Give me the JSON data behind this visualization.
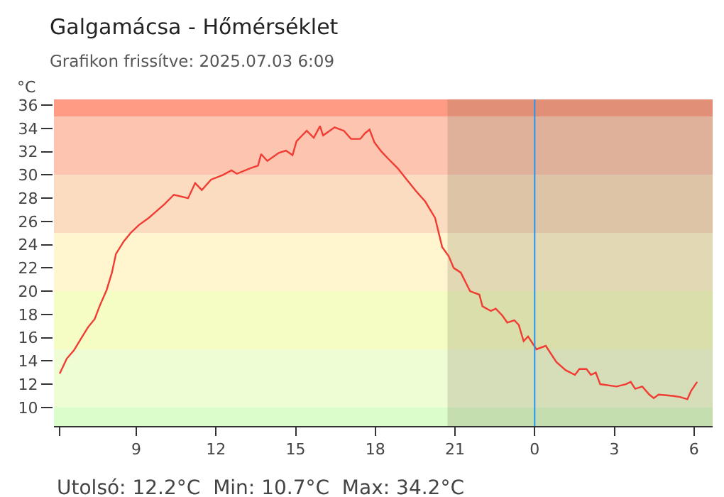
{
  "chart_data": {
    "type": "line",
    "title": "Galgamácsa - Hőmérséklet",
    "subtitle": "Grafikon frissítve: 2025.07.03 6:09",
    "ylabel": "°C",
    "annotations": [
      "Utolsó: 12.2°C  Min: 10.7°C  Max: 34.2°C"
    ],
    "series": [
      {
        "color": "#f03c32",
        "x": [
          "2025-07-02T06:07",
          "2025-07-02T06:23",
          "2025-07-02T06:39",
          "2025-07-02T06:55",
          "2025-07-02T07:11",
          "2025-07-02T07:26",
          "2025-07-02T07:37",
          "2025-07-02T07:53",
          "2025-07-02T08:05",
          "2025-07-02T08:14",
          "2025-07-02T08:32",
          "2025-07-02T08:47",
          "2025-07-02T09:06",
          "2025-07-02T09:28",
          "2025-07-02T09:43",
          "2025-07-02T10:04",
          "2025-07-02T10:25",
          "2025-07-02T10:57",
          "2025-07-02T11:13",
          "2025-07-02T11:28",
          "2025-07-02T11:49",
          "2025-07-02T12:16",
          "2025-07-02T12:35",
          "2025-07-02T12:47",
          "2025-07-02T13:19",
          "2025-07-02T13:35",
          "2025-07-02T13:42",
          "2025-07-02T13:56",
          "2025-07-02T14:22",
          "2025-07-02T14:38",
          "2025-07-02T14:53",
          "2025-07-02T15:02",
          "2025-07-02T15:25",
          "2025-07-02T15:41",
          "2025-07-02T15:55",
          "2025-07-02T16:02",
          "2025-07-02T16:28",
          "2025-07-02T16:49",
          "2025-07-02T17:05",
          "2025-07-02T17:26",
          "2025-07-02T17:37",
          "2025-07-02T17:47",
          "2025-07-02T17:58",
          "2025-07-02T18:14",
          "2025-07-02T18:29",
          "2025-07-02T18:50",
          "2025-07-02T19:11",
          "2025-07-02T19:32",
          "2025-07-02T19:53",
          "2025-07-02T20:15",
          "2025-07-02T20:31",
          "2025-07-02T20:46",
          "2025-07-02T20:57",
          "2025-07-02T21:13",
          "2025-07-02T21:34",
          "2025-07-02T21:55",
          "2025-07-02T22:02",
          "2025-07-02T22:21",
          "2025-07-02T22:32",
          "2025-07-02T22:47",
          "2025-07-02T22:58",
          "2025-07-02T23:14",
          "2025-07-02T23:24",
          "2025-07-02T23:35",
          "2025-07-02T23:45",
          "2025-07-03T00:04",
          "2025-07-03T00:25",
          "2025-07-03T00:49",
          "2025-07-03T01:10",
          "2025-07-03T01:31",
          "2025-07-03T01:41",
          "2025-07-03T01:57",
          "2025-07-03T02:07",
          "2025-07-03T02:18",
          "2025-07-03T02:28",
          "2025-07-03T03:05",
          "2025-07-03T03:26",
          "2025-07-03T03:37",
          "2025-07-03T03:47",
          "2025-07-03T04:03",
          "2025-07-03T04:19",
          "2025-07-03T04:29",
          "2025-07-03T04:40",
          "2025-07-03T05:11",
          "2025-07-03T05:28",
          "2025-07-03T05:45",
          "2025-07-03T05:53",
          "2025-07-03T06:07"
        ],
        "values": [
          12.9,
          14.2,
          14.9,
          15.9,
          16.9,
          17.6,
          18.7,
          20.1,
          21.6,
          23.2,
          24.3,
          25.0,
          25.7,
          26.3,
          26.8,
          27.5,
          28.3,
          28.0,
          29.3,
          28.7,
          29.6,
          30.0,
          30.4,
          30.1,
          30.6,
          30.8,
          31.8,
          31.2,
          31.9,
          32.1,
          31.7,
          32.9,
          33.8,
          33.2,
          34.2,
          33.4,
          34.1,
          33.8,
          33.1,
          33.1,
          33.6,
          33.9,
          32.8,
          32.0,
          31.4,
          30.6,
          29.6,
          28.6,
          27.7,
          26.3,
          23.8,
          23.0,
          22.0,
          21.6,
          20.0,
          19.7,
          18.7,
          18.3,
          18.5,
          17.9,
          17.3,
          17.5,
          17.1,
          15.7,
          16.1,
          15.0,
          15.3,
          13.9,
          13.2,
          12.8,
          13.3,
          13.3,
          12.8,
          13.0,
          12.0,
          11.8,
          12.0,
          12.2,
          11.6,
          11.8,
          11.1,
          10.8,
          11.1,
          11.0,
          10.9,
          10.7,
          11.4,
          12.2
        ]
      }
    ],
    "xlim": [
      "2025-07-02T05:54",
      "2025-07-03T06:42"
    ],
    "xticks": [
      {
        "value": "2025-07-02T06:07",
        "label": null
      },
      {
        "value": "2025-07-02T09:00",
        "label": "9"
      },
      {
        "value": "2025-07-02T12:00",
        "label": "12"
      },
      {
        "value": "2025-07-02T15:00",
        "label": "15"
      },
      {
        "value": "2025-07-02T18:00",
        "label": "18"
      },
      {
        "value": "2025-07-02T21:00",
        "label": "21"
      },
      {
        "value": "2025-07-03T00:00",
        "label": "0"
      },
      {
        "value": "2025-07-03T03:00",
        "label": "3"
      },
      {
        "value": "2025-07-03T06:00",
        "label": "6"
      }
    ],
    "ylim": [
      8.4,
      36.5
    ],
    "yticks": [
      10,
      12,
      14,
      16,
      18,
      20,
      22,
      24,
      26,
      28,
      30,
      32,
      34,
      36
    ],
    "bands": [
      {
        "axis": "y",
        "from": 35,
        "to": 36.5,
        "label": null,
        "color": "#ff9a85"
      },
      {
        "axis": "y",
        "from": 30,
        "to": 35,
        "label": null,
        "color": "#fdc5b0"
      },
      {
        "axis": "y",
        "from": 25,
        "to": 30,
        "label": null,
        "color": "#fbdcc0"
      },
      {
        "axis": "y",
        "from": 20,
        "to": 25,
        "label": null,
        "color": "#fff6cf"
      },
      {
        "axis": "y",
        "from": 15,
        "to": 20,
        "label": null,
        "color": "#f5fdc4"
      },
      {
        "axis": "y",
        "from": 10,
        "to": 15,
        "label": null,
        "color": "#effdd5"
      },
      {
        "axis": "y",
        "from": 8.4,
        "to": 10,
        "label": null,
        "color": "#dafdcb"
      },
      {
        "axis": "x",
        "from": "2025-07-02T20:43",
        "to": "2025-07-03T06:42",
        "label": null,
        "color": "#6e6446"
      }
    ],
    "ref_lines": [
      {
        "axis": "x",
        "value": "2025-07-03T00:00",
        "label": null,
        "color": "#2196f3",
        "line_style": "solid"
      }
    ],
    "line_style": "solid",
    "marker": "none",
    "grid": false
  }
}
